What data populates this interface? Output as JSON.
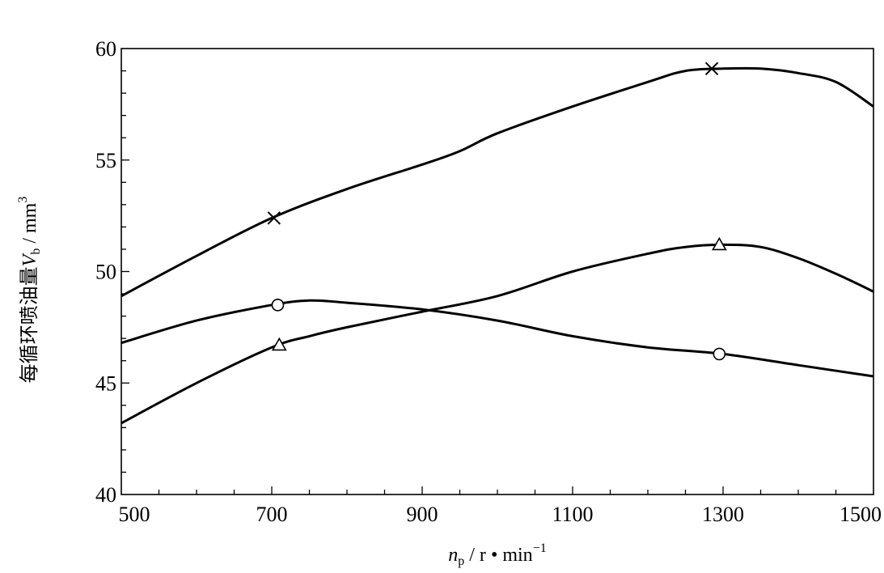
{
  "header_fragment": "",
  "chart_data": {
    "type": "line",
    "title": "",
    "xlabel": "n_p / r • min^-1",
    "ylabel": "每循环喷油量 V_b / mm^3",
    "xlabel_parts": {
      "var": "n",
      "sub": "p",
      "rest": " / r ",
      "dot": "•",
      "unit": " min",
      "sup": "−1"
    },
    "ylabel_parts": {
      "cn": "每循环喷油量",
      "var": "V",
      "sub": "b",
      "unit": " / mm",
      "sup": "3"
    },
    "xlim": [
      500,
      1500
    ],
    "ylim": [
      40,
      60
    ],
    "x_ticks": [
      500,
      700,
      900,
      1100,
      1300,
      1500
    ],
    "y_ticks": [
      40,
      45,
      50,
      55,
      60
    ],
    "grid": false,
    "legend": "none",
    "series": [
      {
        "marker": "x",
        "x": [
          500,
          600,
          700,
          800,
          900,
          950,
          1000,
          1100,
          1200,
          1250,
          1300,
          1350,
          1400,
          1450,
          1500
        ],
        "y": [
          48.9,
          50.7,
          52.4,
          53.7,
          54.8,
          55.4,
          56.2,
          57.4,
          58.5,
          59.0,
          59.1,
          59.1,
          58.9,
          58.5,
          57.4
        ],
        "marker_points": [
          [
            703,
            52.4
          ],
          [
            1285,
            59.1
          ]
        ]
      },
      {
        "marker": "triangle",
        "x": [
          500,
          600,
          700,
          750,
          800,
          900,
          1000,
          1100,
          1200,
          1250,
          1300,
          1350,
          1400,
          1450,
          1500
        ],
        "y": [
          43.2,
          45.0,
          46.6,
          47.1,
          47.5,
          48.2,
          48.9,
          50.0,
          50.8,
          51.1,
          51.2,
          51.1,
          50.6,
          49.9,
          49.1
        ],
        "marker_points": [
          [
            710,
            46.7
          ],
          [
            1295,
            51.2
          ]
        ]
      },
      {
        "marker": "circle",
        "x": [
          500,
          600,
          700,
          750,
          800,
          900,
          1000,
          1100,
          1200,
          1300,
          1400,
          1500
        ],
        "y": [
          46.8,
          47.8,
          48.5,
          48.7,
          48.6,
          48.3,
          47.8,
          47.1,
          46.6,
          46.3,
          45.8,
          45.3
        ],
        "marker_points": [
          [
            708,
            48.5
          ],
          [
            1295,
            46.3
          ]
        ]
      }
    ]
  }
}
